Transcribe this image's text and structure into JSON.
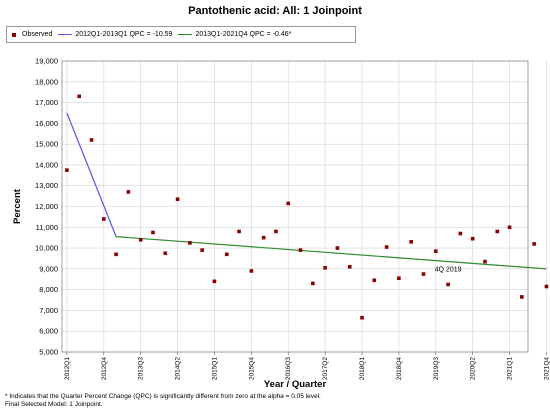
{
  "chart_data": {
    "type": "scatter",
    "title": "Pantothenic acid: All: 1 Joinpoint",
    "xlabel": "Year / Quarter",
    "ylabel": "Percent",
    "ylim": [
      5000,
      19000
    ],
    "yticks": [
      "5,000",
      "6,000",
      "7,000",
      "8,000",
      "9,000",
      "10,000",
      "11,000",
      "12,000",
      "13,000",
      "14,000",
      "15,000",
      "16,000",
      "17,000",
      "18,000",
      "19,000"
    ],
    "x_start": 0.0,
    "xlim": [
      -0.4,
      37.5
    ],
    "xticks": [
      {
        "x": 0,
        "label": "2012Q1"
      },
      {
        "x": 3,
        "label": "2012Q4"
      },
      {
        "x": 6,
        "label": "2013Q3"
      },
      {
        "x": 9,
        "label": "2014Q2"
      },
      {
        "x": 12,
        "label": "2015Q1"
      },
      {
        "x": 15,
        "label": "2015Q4"
      },
      {
        "x": 18,
        "label": "2016Q3"
      },
      {
        "x": 21,
        "label": "2017Q2"
      },
      {
        "x": 24,
        "label": "2018Q1"
      },
      {
        "x": 27,
        "label": "2018Q4"
      },
      {
        "x": 30,
        "label": "2019Q3"
      },
      {
        "x": 33,
        "label": "2020Q2"
      },
      {
        "x": 36,
        "label": "2021Q1"
      },
      {
        "x": 39,
        "label": "2021Q4"
      }
    ],
    "grid": true,
    "legend_position": "top-left",
    "series": [
      {
        "name": "Observed",
        "kind": "points",
        "color": "#8b0000",
        "points": [
          [
            0,
            13750
          ],
          [
            1,
            17300
          ],
          [
            2,
            15200
          ],
          [
            3,
            11400
          ],
          [
            4,
            9700
          ],
          [
            5,
            12700
          ],
          [
            6,
            10400
          ],
          [
            7,
            10750
          ],
          [
            8,
            9750
          ],
          [
            9,
            12350
          ],
          [
            10,
            10250
          ],
          [
            11,
            9900
          ],
          [
            12,
            8400
          ],
          [
            13,
            9700
          ],
          [
            14,
            10800
          ],
          [
            15,
            8900
          ],
          [
            16,
            10500
          ],
          [
            17,
            10800
          ],
          [
            18,
            12150
          ],
          [
            19,
            9900
          ],
          [
            20,
            8300
          ],
          [
            21,
            9050
          ],
          [
            22,
            10000
          ],
          [
            23,
            9100
          ],
          [
            24,
            6650
          ],
          [
            25,
            8450
          ],
          [
            26,
            10050
          ],
          [
            27,
            8550
          ],
          [
            28,
            10300
          ],
          [
            29,
            8750
          ],
          [
            30,
            9850
          ],
          [
            31,
            8250
          ],
          [
            32,
            10700
          ],
          [
            33,
            10450
          ],
          [
            34,
            9350
          ],
          [
            35,
            10800
          ],
          [
            36,
            11000
          ],
          [
            37,
            7650
          ],
          [
            38,
            10200
          ],
          [
            39,
            8150
          ]
        ]
      },
      {
        "name": "2012Q1-2013Q1 QPC = -10.59",
        "kind": "line",
        "color": "#5555ee",
        "points": [
          [
            0,
            16500
          ],
          [
            4,
            10550
          ]
        ]
      },
      {
        "name": "2013Q1-2021Q4 QPC = -0.46*",
        "kind": "line",
        "color": "#2e8b2e",
        "points": [
          [
            4,
            10550
          ],
          [
            39,
            9000
          ]
        ]
      }
    ],
    "annotations": [
      {
        "text": "4Q 2019",
        "x": 31,
        "y": 8880
      }
    ]
  },
  "footnote": {
    "line1": "* Indicates that the Quarter Percent Change (QPC) is significantly different from zero at the alpha = 0.05 level.",
    "line2": "Final Selected Model: 1 Joinpoint."
  }
}
